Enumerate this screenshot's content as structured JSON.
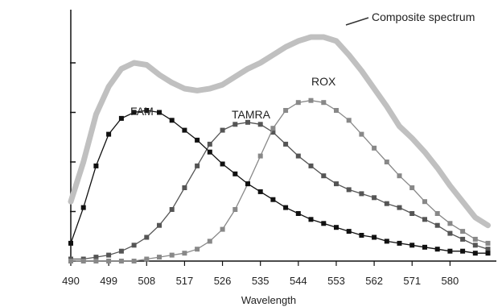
{
  "chart_data": {
    "type": "line",
    "title": "",
    "xlabel": "Wavelength",
    "ylabel": "",
    "xlim": [
      490,
      591
    ],
    "ylim": [
      0,
      1.0
    ],
    "x_ticks": [
      490,
      499,
      508,
      517,
      526,
      535,
      544,
      553,
      562,
      571,
      580
    ],
    "y_tick_values": [
      0,
      0.25,
      0.5,
      0.75,
      1.0
    ],
    "grid": false,
    "series": [
      {
        "name": "FAM",
        "color": "#111111",
        "marker": "square",
        "x": [
          490,
          493,
          496,
          499,
          502,
          505,
          508,
          511,
          514,
          517,
          520,
          523,
          526,
          529,
          532,
          535,
          538,
          541,
          544,
          547,
          550,
          553,
          556,
          559,
          562,
          565,
          568,
          571,
          574,
          577,
          580,
          583,
          586,
          589
        ],
        "y": [
          0.09,
          0.27,
          0.48,
          0.64,
          0.72,
          0.75,
          0.76,
          0.75,
          0.71,
          0.66,
          0.61,
          0.55,
          0.49,
          0.44,
          0.39,
          0.35,
          0.31,
          0.27,
          0.24,
          0.21,
          0.19,
          0.17,
          0.15,
          0.13,
          0.12,
          0.1,
          0.09,
          0.08,
          0.07,
          0.06,
          0.05,
          0.05,
          0.04,
          0.04
        ]
      },
      {
        "name": "TAMRA",
        "color": "#555555",
        "marker": "square",
        "x": [
          490,
          493,
          496,
          499,
          502,
          505,
          508,
          511,
          514,
          517,
          520,
          523,
          526,
          529,
          532,
          535,
          538,
          541,
          544,
          547,
          550,
          553,
          556,
          559,
          562,
          565,
          568,
          571,
          574,
          577,
          580,
          583,
          586,
          589
        ],
        "y": [
          0.01,
          0.01,
          0.02,
          0.03,
          0.05,
          0.08,
          0.12,
          0.18,
          0.26,
          0.37,
          0.48,
          0.59,
          0.66,
          0.69,
          0.7,
          0.69,
          0.65,
          0.59,
          0.53,
          0.48,
          0.43,
          0.39,
          0.36,
          0.34,
          0.32,
          0.29,
          0.27,
          0.24,
          0.21,
          0.18,
          0.14,
          0.11,
          0.08,
          0.06
        ]
      },
      {
        "name": "ROX",
        "color": "#888888",
        "marker": "square",
        "x": [
          490,
          493,
          496,
          499,
          502,
          505,
          508,
          511,
          514,
          517,
          520,
          523,
          526,
          529,
          532,
          535,
          538,
          541,
          544,
          547,
          550,
          553,
          556,
          559,
          562,
          565,
          568,
          571,
          574,
          577,
          580,
          583,
          586,
          589
        ],
        "y": [
          0.0,
          0.0,
          0.0,
          0.0,
          0.0,
          0.0,
          0.01,
          0.02,
          0.03,
          0.04,
          0.06,
          0.1,
          0.16,
          0.26,
          0.39,
          0.53,
          0.67,
          0.76,
          0.8,
          0.81,
          0.8,
          0.76,
          0.71,
          0.64,
          0.57,
          0.5,
          0.43,
          0.37,
          0.3,
          0.24,
          0.19,
          0.15,
          0.11,
          0.09
        ]
      },
      {
        "name": "Composite spectrum",
        "color": "#c0c0c0",
        "marker": "none",
        "x": [
          490,
          493,
          496,
          499,
          502,
          505,
          508,
          511,
          514,
          517,
          520,
          523,
          526,
          529,
          532,
          535,
          538,
          541,
          544,
          547,
          550,
          553,
          556,
          559,
          562,
          565,
          568,
          571,
          574,
          577,
          580,
          583,
          586,
          589
        ],
        "y": [
          0.3,
          0.5,
          0.74,
          0.88,
          0.97,
          1.0,
          0.99,
          0.94,
          0.9,
          0.87,
          0.86,
          0.87,
          0.89,
          0.93,
          0.97,
          1.0,
          1.04,
          1.08,
          1.11,
          1.13,
          1.13,
          1.11,
          1.04,
          0.96,
          0.87,
          0.78,
          0.68,
          0.62,
          0.55,
          0.47,
          0.38,
          0.3,
          0.22,
          0.18
        ]
      }
    ],
    "annotations": [
      {
        "text": "FAM"
      },
      {
        "text": "TAMRA"
      },
      {
        "text": "ROX"
      },
      {
        "text": "Composite spectrum"
      }
    ]
  }
}
